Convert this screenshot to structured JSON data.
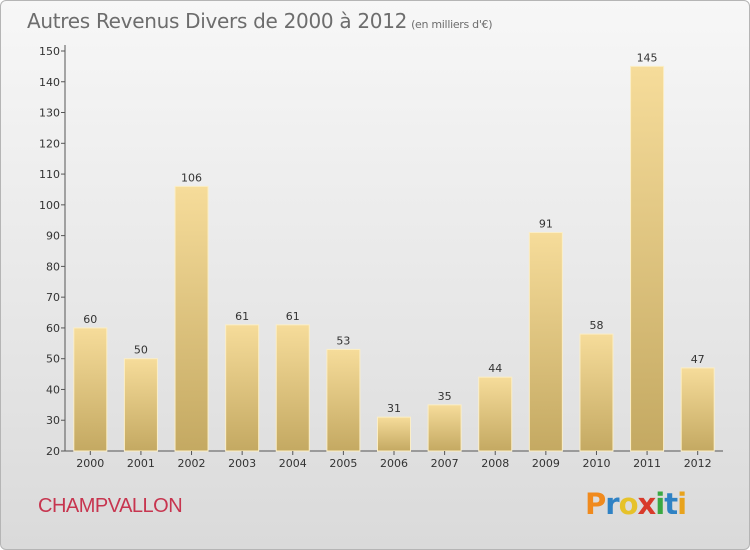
{
  "title": "Autres Revenus Divers de 2000 à 2012",
  "subtitle": "(en milliers d'€)",
  "commune": "CHAMPVALLON",
  "logo": {
    "letters": [
      "P",
      "r",
      "o",
      "x",
      "i",
      "t",
      "i"
    ],
    "colors": [
      "#f08a1d",
      "#2f82c4",
      "#e6c22a",
      "#d83a2a",
      "#3aa843",
      "#2f82c4",
      "#e8a31d"
    ]
  },
  "chart_data": {
    "type": "bar",
    "title": "Autres Revenus Divers de 2000 à 2012",
    "subtitle": "(en milliers d'€)",
    "categories": [
      "2000",
      "2001",
      "2002",
      "2003",
      "2004",
      "2005",
      "2006",
      "2007",
      "2008",
      "2009",
      "2010",
      "2011",
      "2012"
    ],
    "values": [
      60,
      50,
      106,
      61,
      61,
      53,
      31,
      35,
      44,
      91,
      58,
      145,
      47
    ],
    "ylim": [
      20,
      150
    ],
    "yticks": [
      20,
      30,
      40,
      50,
      60,
      70,
      80,
      90,
      100,
      110,
      120,
      130,
      140,
      150
    ],
    "grid": false,
    "colors": {
      "bar_light": "#f6dc9a",
      "bar_dark": "#c4a962",
      "axis": "#555555"
    }
  }
}
